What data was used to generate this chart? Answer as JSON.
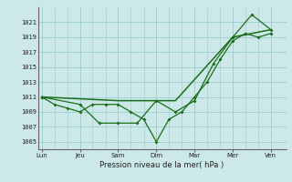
{
  "xlabel": "Pression niveau de la mer( hPa )",
  "bg_color": "#cce8e8",
  "grid_color": "#99cccc",
  "line_color": "#1a6e1a",
  "ylim": [
    1004,
    1023
  ],
  "yticks": [
    1005,
    1007,
    1009,
    1011,
    1013,
    1015,
    1017,
    1019,
    1021
  ],
  "day_labels": [
    "Lun",
    "Jeu",
    "Sam",
    "Dim",
    "Mar",
    "Mer",
    "Ven"
  ],
  "day_positions": [
    0,
    1,
    2,
    3,
    4,
    5,
    6
  ],
  "xlim": [
    -0.1,
    6.4
  ],
  "line1_x": [
    0,
    0.33,
    0.67,
    1.0,
    1.33,
    1.67,
    2.0,
    2.33,
    2.67,
    3.0,
    3.33,
    3.67,
    4.0,
    4.33,
    4.67,
    5.0,
    5.33,
    5.67,
    6.0
  ],
  "line1_y": [
    1011,
    1010,
    1009.5,
    1009,
    1010,
    1010,
    1010,
    1009,
    1008,
    1005,
    1008,
    1009,
    1011,
    1013,
    1016,
    1018.5,
    1019.5,
    1019,
    1019.5
  ],
  "line2_x": [
    0,
    1.0,
    1.5,
    2.0,
    2.5,
    3.0,
    3.5,
    4.0,
    4.5,
    5.0,
    5.5,
    6.0
  ],
  "line2_y": [
    1011,
    1010,
    1007.5,
    1007.5,
    1007.5,
    1010.5,
    1009,
    1010.5,
    1015.5,
    1019,
    1022,
    1020
  ],
  "line3_x": [
    0,
    2.0,
    3.5,
    5.0,
    6.0
  ],
  "line3_y": [
    1011,
    1010.5,
    1010.5,
    1019,
    1020
  ],
  "minor_vlines": [
    0.33,
    0.67,
    1.33,
    1.67,
    2.33,
    2.67,
    3.33,
    3.67,
    4.33,
    4.67,
    5.33,
    5.67
  ],
  "ytick_fontsize": 5,
  "xtick_fontsize": 5,
  "xlabel_fontsize": 6
}
